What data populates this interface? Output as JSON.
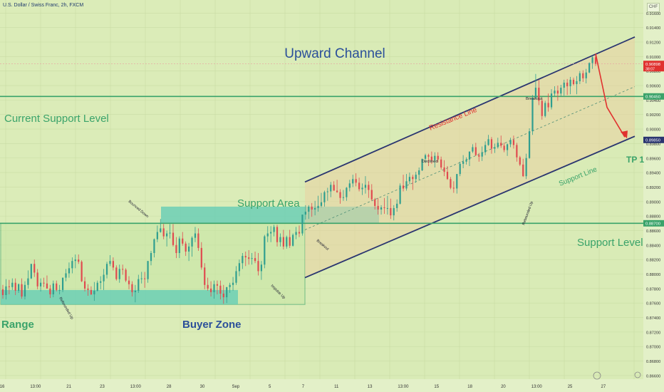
{
  "header": {
    "title": "U.S. Dollar / Swiss Franc, 2h, FXCM",
    "currency": "CHF"
  },
  "colors": {
    "background": "#d9ebb6",
    "green_zone": "#6ccfb5",
    "channel_fill": "#e9d2a3",
    "channel_line": "#2a3570",
    "support_line": "#3aa36a",
    "arrow": "#e0322f",
    "candle_up": "#2f9e8f",
    "candle_down": "#e04a4f"
  },
  "chart_data": {
    "type": "candlestick",
    "symbol": "USDCHF",
    "timeframe": "2h",
    "x_ticks": [
      "16",
      "13:00",
      "21",
      "23",
      "13:00",
      "28",
      "30",
      "Sep",
      "5",
      "7",
      "11",
      "13",
      "13:00",
      "15",
      "18",
      "20",
      "13:00",
      "25",
      "27"
    ],
    "y_ticks": [
      0.916,
      0.914,
      0.912,
      0.91,
      0.908,
      0.906,
      0.904,
      0.902,
      0.9,
      0.898,
      0.896,
      0.894,
      0.892,
      0.89,
      0.888,
      0.886,
      0.884,
      0.882,
      0.88,
      0.878,
      0.876,
      0.874,
      0.872,
      0.87,
      0.868,
      0.866
    ],
    "ylim": [
      0.8655,
      0.9178
    ],
    "price_labels": [
      {
        "text": "0.90898",
        "sub": "38:07",
        "value": 0.90898,
        "color": "#e0322f"
      },
      {
        "text": "0.90450",
        "value": 0.9045,
        "color": "#3aa36a"
      },
      {
        "text": "0.89850",
        "value": 0.8985,
        "color": "#2a3570"
      },
      {
        "text": "0.88700",
        "value": 0.887,
        "color": "#3aa36a"
      }
    ],
    "horizontal_levels": [
      {
        "name": "Current Support Level",
        "value": 0.9045
      },
      {
        "name": "Support Level",
        "value": 0.887
      }
    ],
    "channel": {
      "name": "Upward Channel",
      "resistance": {
        "label": "Resistance Line",
        "start": {
          "time": "Sep 5",
          "price": 0.8927
        },
        "end": {
          "time": "Sep 27",
          "price": 0.9127
        }
      },
      "support": {
        "label": "Support Line",
        "start": {
          "time": "Sep 5",
          "price": 0.8795
        },
        "end": {
          "time": "Sep 27",
          "price": 0.899
        }
      }
    },
    "zones": [
      "Range",
      "Buyer Zone",
      "Support Area"
    ],
    "annotations": [
      "Upward Channel",
      "Current Support Level",
      "Support Area",
      "Support Level",
      "Range",
      "Buyer Zone",
      "TP 1",
      "Resistance Line",
      "Support Line",
      "Bounced Down",
      "Rebounded Up",
      "Impulse Up",
      "Breakout",
      "Declined",
      "Breakout",
      "Rebounded Up"
    ],
    "target": {
      "label": "TP 1",
      "value": 0.8987
    },
    "close": 0.90898,
    "candles": [
      [
        0.8779,
        0.8785,
        0.8766,
        0.8771
      ],
      [
        0.8771,
        0.8793,
        0.8765,
        0.8783
      ],
      [
        0.8783,
        0.8792,
        0.8772,
        0.8782
      ],
      [
        0.8782,
        0.8794,
        0.8778,
        0.8788
      ],
      [
        0.8788,
        0.8794,
        0.8771,
        0.8777
      ],
      [
        0.8777,
        0.8787,
        0.8774,
        0.8786
      ],
      [
        0.8786,
        0.8794,
        0.8766,
        0.8769
      ],
      [
        0.8769,
        0.879,
        0.8765,
        0.8785
      ],
      [
        0.8785,
        0.8805,
        0.878,
        0.8794
      ],
      [
        0.8794,
        0.8814,
        0.8793,
        0.8814
      ],
      [
        0.8814,
        0.882,
        0.8796,
        0.8802
      ],
      [
        0.8802,
        0.8807,
        0.8779,
        0.8783
      ],
      [
        0.8783,
        0.8794,
        0.8776,
        0.8788
      ],
      [
        0.8788,
        0.8795,
        0.8782,
        0.8787
      ],
      [
        0.8787,
        0.8798,
        0.878,
        0.878
      ],
      [
        0.878,
        0.8785,
        0.8767,
        0.8772
      ],
      [
        0.8772,
        0.8791,
        0.8768,
        0.8787
      ],
      [
        0.8787,
        0.8791,
        0.8776,
        0.8778
      ],
      [
        0.8778,
        0.8785,
        0.8772,
        0.8778
      ],
      [
        0.8778,
        0.8795,
        0.8775,
        0.8795
      ],
      [
        0.8795,
        0.8807,
        0.879,
        0.8801
      ],
      [
        0.8801,
        0.8816,
        0.8795,
        0.8808
      ],
      [
        0.8808,
        0.8823,
        0.8801,
        0.8818
      ],
      [
        0.8818,
        0.8827,
        0.8808,
        0.882
      ],
      [
        0.882,
        0.8827,
        0.8814,
        0.8817
      ],
      [
        0.8817,
        0.8819,
        0.8789,
        0.879
      ],
      [
        0.879,
        0.8796,
        0.8776,
        0.878
      ],
      [
        0.878,
        0.8786,
        0.877,
        0.8778
      ],
      [
        0.8778,
        0.8783,
        0.8771,
        0.8772
      ],
      [
        0.8772,
        0.8789,
        0.8763,
        0.8777
      ],
      [
        0.8777,
        0.8791,
        0.8776,
        0.8788
      ],
      [
        0.8788,
        0.8797,
        0.8779,
        0.879
      ],
      [
        0.879,
        0.8807,
        0.8778,
        0.8799
      ],
      [
        0.8799,
        0.8817,
        0.8794,
        0.8814
      ],
      [
        0.8814,
        0.8826,
        0.8811,
        0.8818
      ],
      [
        0.8818,
        0.8823,
        0.8805,
        0.8809
      ],
      [
        0.8809,
        0.8812,
        0.8791,
        0.8793
      ],
      [
        0.8793,
        0.8813,
        0.8788,
        0.8807
      ],
      [
        0.8807,
        0.8813,
        0.8799,
        0.8806
      ],
      [
        0.8806,
        0.8808,
        0.8789,
        0.8791
      ],
      [
        0.8791,
        0.8797,
        0.8779,
        0.8786
      ],
      [
        0.8786,
        0.879,
        0.8769,
        0.8775
      ],
      [
        0.8775,
        0.8785,
        0.8761,
        0.8777
      ],
      [
        0.8777,
        0.8799,
        0.8774,
        0.8793
      ],
      [
        0.8793,
        0.8803,
        0.8787,
        0.8794
      ],
      [
        0.8794,
        0.8803,
        0.8781,
        0.8793
      ],
      [
        0.8793,
        0.8818,
        0.8788,
        0.8818
      ],
      [
        0.8818,
        0.8832,
        0.8812,
        0.8829
      ],
      [
        0.8829,
        0.8849,
        0.8823,
        0.8848
      ],
      [
        0.8848,
        0.8867,
        0.8844,
        0.8858
      ],
      [
        0.8858,
        0.8876,
        0.8857,
        0.8863
      ],
      [
        0.8863,
        0.8869,
        0.8848,
        0.8852
      ],
      [
        0.8852,
        0.886,
        0.8838,
        0.8856
      ],
      [
        0.8856,
        0.8869,
        0.8849,
        0.8857
      ],
      [
        0.8857,
        0.8869,
        0.8838,
        0.884
      ],
      [
        0.884,
        0.8851,
        0.8822,
        0.8829
      ],
      [
        0.8829,
        0.8852,
        0.8822,
        0.8849
      ],
      [
        0.8849,
        0.8858,
        0.8839,
        0.8842
      ],
      [
        0.8842,
        0.8845,
        0.8825,
        0.8831
      ],
      [
        0.8831,
        0.8843,
        0.8818,
        0.8838
      ],
      [
        0.8838,
        0.8852,
        0.8824,
        0.885
      ],
      [
        0.885,
        0.8865,
        0.8844,
        0.8856
      ],
      [
        0.8856,
        0.8863,
        0.8832,
        0.8836
      ],
      [
        0.8836,
        0.8844,
        0.8806,
        0.8809
      ],
      [
        0.8809,
        0.8815,
        0.8779,
        0.8785
      ],
      [
        0.8785,
        0.8795,
        0.8777,
        0.878
      ],
      [
        0.878,
        0.879,
        0.8769,
        0.8775
      ],
      [
        0.8775,
        0.8791,
        0.8766,
        0.8786
      ],
      [
        0.8786,
        0.8791,
        0.8772,
        0.8784
      ],
      [
        0.8784,
        0.8791,
        0.8765,
        0.8773
      ],
      [
        0.8773,
        0.8785,
        0.8759,
        0.8768
      ],
      [
        0.8768,
        0.8782,
        0.876,
        0.8782
      ],
      [
        0.8782,
        0.8788,
        0.8774,
        0.8785
      ],
      [
        0.8785,
        0.8796,
        0.8777,
        0.8788
      ],
      [
        0.8788,
        0.8811,
        0.8785,
        0.8804
      ],
      [
        0.8804,
        0.882,
        0.8797,
        0.8815
      ],
      [
        0.8815,
        0.8829,
        0.8807,
        0.8825
      ],
      [
        0.8825,
        0.8831,
        0.8811,
        0.8823
      ],
      [
        0.8823,
        0.8833,
        0.8813,
        0.8821
      ],
      [
        0.8821,
        0.8829,
        0.8813,
        0.8822
      ],
      [
        0.8822,
        0.8831,
        0.8815,
        0.8818
      ],
      [
        0.8818,
        0.8829,
        0.8798,
        0.8804
      ],
      [
        0.8804,
        0.8818,
        0.8792,
        0.8813
      ],
      [
        0.8813,
        0.8854,
        0.8808,
        0.8852
      ],
      [
        0.8852,
        0.8866,
        0.8844,
        0.8856
      ],
      [
        0.8856,
        0.8866,
        0.8844,
        0.8858
      ],
      [
        0.8858,
        0.8868,
        0.8852,
        0.8865
      ],
      [
        0.8865,
        0.8868,
        0.8838,
        0.8844
      ],
      [
        0.8844,
        0.8856,
        0.8838,
        0.8851
      ],
      [
        0.8851,
        0.8861,
        0.8834,
        0.8838
      ],
      [
        0.8838,
        0.8853,
        0.8835,
        0.8851
      ],
      [
        0.8851,
        0.8861,
        0.8836,
        0.8839
      ],
      [
        0.8839,
        0.8856,
        0.8838,
        0.8854
      ],
      [
        0.8854,
        0.8865,
        0.8848,
        0.8858
      ],
      [
        0.8858,
        0.8867,
        0.8851,
        0.8856
      ],
      [
        0.8856,
        0.8882,
        0.8853,
        0.8882
      ],
      [
        0.8882,
        0.8895,
        0.8875,
        0.8886
      ],
      [
        0.8886,
        0.8895,
        0.8876,
        0.8893
      ],
      [
        0.8893,
        0.8898,
        0.8879,
        0.8889
      ],
      [
        0.8889,
        0.8901,
        0.8881,
        0.8891
      ],
      [
        0.8891,
        0.8908,
        0.8886,
        0.8894
      ],
      [
        0.8894,
        0.8912,
        0.8892,
        0.8899
      ],
      [
        0.8899,
        0.8915,
        0.8893,
        0.8913
      ],
      [
        0.8913,
        0.8919,
        0.8901,
        0.8914
      ],
      [
        0.8914,
        0.8927,
        0.8906,
        0.8923
      ],
      [
        0.8923,
        0.8928,
        0.8915,
        0.8915
      ],
      [
        0.8915,
        0.893,
        0.8912,
        0.8913
      ],
      [
        0.8913,
        0.8917,
        0.8897,
        0.8905
      ],
      [
        0.8905,
        0.8916,
        0.8901,
        0.8906
      ],
      [
        0.8906,
        0.892,
        0.8901,
        0.8919
      ],
      [
        0.8919,
        0.893,
        0.8914,
        0.8925
      ],
      [
        0.8925,
        0.8937,
        0.892,
        0.8931
      ],
      [
        0.8931,
        0.8939,
        0.8921,
        0.8926
      ],
      [
        0.8926,
        0.8933,
        0.8914,
        0.8917
      ],
      [
        0.8917,
        0.8925,
        0.8909,
        0.8919
      ],
      [
        0.8919,
        0.8935,
        0.8911,
        0.8923
      ],
      [
        0.8923,
        0.8928,
        0.8905,
        0.8916
      ],
      [
        0.8916,
        0.8924,
        0.8901,
        0.8903
      ],
      [
        0.8903,
        0.8905,
        0.8889,
        0.8894
      ],
      [
        0.8894,
        0.8905,
        0.8882,
        0.8889
      ],
      [
        0.8889,
        0.8895,
        0.8882,
        0.8892
      ],
      [
        0.8892,
        0.8905,
        0.8883,
        0.8891
      ],
      [
        0.8891,
        0.8908,
        0.8882,
        0.8891
      ],
      [
        0.8891,
        0.8904,
        0.8876,
        0.8881
      ],
      [
        0.8881,
        0.8895,
        0.8874,
        0.8891
      ],
      [
        0.8891,
        0.8903,
        0.8886,
        0.8897
      ],
      [
        0.8897,
        0.8925,
        0.8896,
        0.8922
      ],
      [
        0.8922,
        0.8937,
        0.8914,
        0.8918
      ],
      [
        0.8918,
        0.8938,
        0.8915,
        0.8928
      ],
      [
        0.8928,
        0.894,
        0.8924,
        0.8934
      ],
      [
        0.8934,
        0.8937,
        0.8916,
        0.8931
      ],
      [
        0.8931,
        0.8941,
        0.8926,
        0.8937
      ],
      [
        0.8937,
        0.8947,
        0.893,
        0.8943
      ],
      [
        0.8943,
        0.8959,
        0.8942,
        0.8959
      ],
      [
        0.8959,
        0.8966,
        0.8953,
        0.8964
      ],
      [
        0.8964,
        0.8966,
        0.8949,
        0.8962
      ],
      [
        0.8962,
        0.8969,
        0.8952,
        0.8957
      ],
      [
        0.8957,
        0.8968,
        0.8947,
        0.8963
      ],
      [
        0.8963,
        0.8968,
        0.8954,
        0.8958
      ],
      [
        0.8958,
        0.8962,
        0.8944,
        0.8947
      ],
      [
        0.8947,
        0.8957,
        0.8935,
        0.8941
      ],
      [
        0.8941,
        0.8949,
        0.893,
        0.8931
      ],
      [
        0.8931,
        0.8934,
        0.8917,
        0.8919
      ],
      [
        0.8919,
        0.8928,
        0.8912,
        0.8918
      ],
      [
        0.8918,
        0.8938,
        0.8911,
        0.8938
      ],
      [
        0.8938,
        0.8955,
        0.8935,
        0.8952
      ],
      [
        0.8952,
        0.8964,
        0.8946,
        0.8955
      ],
      [
        0.8955,
        0.8961,
        0.8951,
        0.8958
      ],
      [
        0.8958,
        0.8969,
        0.8949,
        0.8969
      ],
      [
        0.8969,
        0.8979,
        0.8967,
        0.8975
      ],
      [
        0.8975,
        0.8981,
        0.8963,
        0.8964
      ],
      [
        0.8964,
        0.8967,
        0.8955,
        0.8962
      ],
      [
        0.8962,
        0.8976,
        0.8956,
        0.8968
      ],
      [
        0.8968,
        0.8983,
        0.8964,
        0.8978
      ],
      [
        0.8978,
        0.8992,
        0.8977,
        0.8986
      ],
      [
        0.8986,
        0.8989,
        0.8966,
        0.8973
      ],
      [
        0.8973,
        0.898,
        0.8967,
        0.8975
      ],
      [
        0.8975,
        0.8988,
        0.8973,
        0.8981
      ],
      [
        0.8981,
        0.8991,
        0.8974,
        0.8977
      ],
      [
        0.8977,
        0.8981,
        0.8968,
        0.8971
      ],
      [
        0.8971,
        0.898,
        0.8963,
        0.8979
      ],
      [
        0.8979,
        0.8988,
        0.8975,
        0.8985
      ],
      [
        0.8985,
        0.8991,
        0.8973,
        0.8978
      ],
      [
        0.8978,
        0.8981,
        0.8955,
        0.8961
      ],
      [
        0.8961,
        0.8963,
        0.8949,
        0.8951
      ],
      [
        0.8951,
        0.8959,
        0.8934,
        0.8935
      ],
      [
        0.8935,
        0.8966,
        0.8931,
        0.896
      ],
      [
        0.896,
        0.9001,
        0.8959,
        0.8997
      ],
      [
        0.8997,
        0.9047,
        0.8992,
        0.9043
      ],
      [
        0.9043,
        0.9076,
        0.9042,
        0.9057
      ],
      [
        0.9057,
        0.9068,
        0.9033,
        0.9039
      ],
      [
        0.9039,
        0.9042,
        0.9013,
        0.9018
      ],
      [
        0.9018,
        0.9039,
        0.9016,
        0.9036
      ],
      [
        0.9036,
        0.9049,
        0.9024,
        0.903
      ],
      [
        0.903,
        0.9055,
        0.9027,
        0.9049
      ],
      [
        0.9049,
        0.9059,
        0.9045,
        0.9053
      ],
      [
        0.9053,
        0.906,
        0.9039,
        0.9049
      ],
      [
        0.9049,
        0.9061,
        0.9045,
        0.9057
      ],
      [
        0.9057,
        0.9068,
        0.9046,
        0.9064
      ],
      [
        0.9064,
        0.9069,
        0.9047,
        0.9059
      ],
      [
        0.9059,
        0.9072,
        0.9048,
        0.9068
      ],
      [
        0.9068,
        0.9071,
        0.906,
        0.9062
      ],
      [
        0.9062,
        0.9073,
        0.9048,
        0.9066
      ],
      [
        0.9066,
        0.908,
        0.9062,
        0.9077
      ],
      [
        0.9077,
        0.9081,
        0.9065,
        0.907
      ],
      [
        0.907,
        0.9083,
        0.9063,
        0.9078
      ],
      [
        0.9078,
        0.9092,
        0.9077,
        0.9091
      ],
      [
        0.9091,
        0.9101,
        0.9083,
        0.9099
      ],
      [
        0.9099,
        0.9104,
        0.9087,
        0.909
      ]
    ]
  }
}
